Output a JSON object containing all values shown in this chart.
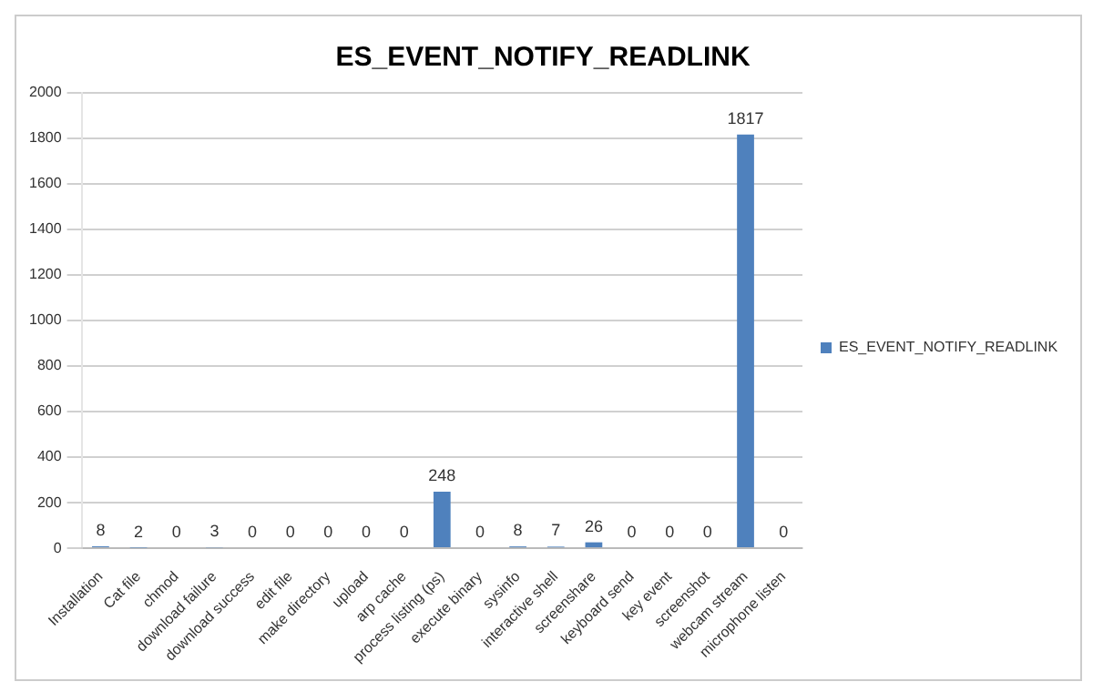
{
  "chart_data": {
    "type": "bar",
    "title": "ES_EVENT_NOTIFY_READLINK",
    "categories": [
      "Installation",
      "Cat file",
      "chmod",
      "download failure",
      "download success",
      "edit file",
      "make directory",
      "upload",
      "arp cache",
      "process listing (ps)",
      "execute binary",
      "sysinfo",
      "interactive shell",
      "screenshare",
      "keyboard send",
      "key event",
      "screenshot",
      "webcam stream",
      "microphone listen"
    ],
    "series": [
      {
        "name": "ES_EVENT_NOTIFY_READLINK",
        "color": "#4f81bd",
        "values": [
          8,
          2,
          0,
          3,
          0,
          0,
          0,
          0,
          0,
          248,
          0,
          8,
          7,
          26,
          0,
          0,
          0,
          1817,
          0
        ]
      }
    ],
    "ylim": [
      0,
      2000
    ],
    "yticks": [
      0,
      200,
      400,
      600,
      800,
      1000,
      1200,
      1400,
      1600,
      1800,
      2000
    ],
    "grid": "y",
    "legend": "right",
    "data_labels": true
  }
}
